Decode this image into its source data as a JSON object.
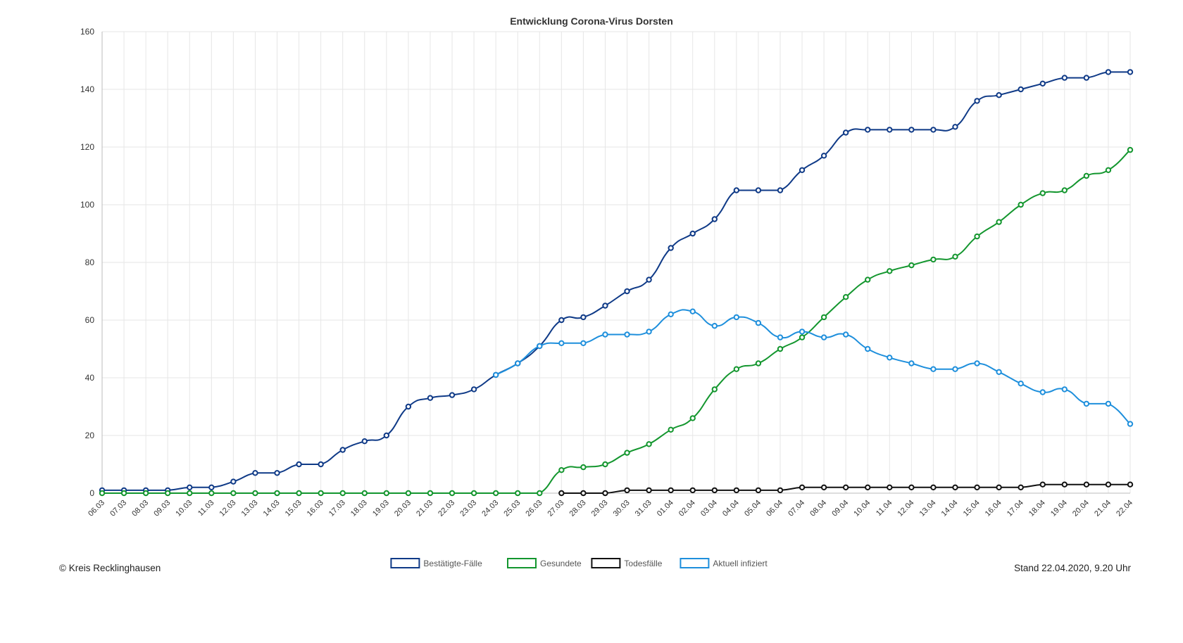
{
  "chart_data": {
    "type": "line",
    "title": "Entwicklung Corona-Virus Dorsten",
    "xlabel": "",
    "ylabel": "",
    "ylim": [
      0,
      160
    ],
    "yticks": [
      0,
      20,
      40,
      60,
      80,
      100,
      120,
      140,
      160
    ],
    "grid": true,
    "legend_position": "bottom-center",
    "categories": [
      "06.03",
      "07.03",
      "08.03",
      "09.03",
      "10.03",
      "11.03",
      "12.03",
      "13.03",
      "14.03",
      "15.03",
      "16.03",
      "17.03",
      "18.03",
      "19.03",
      "20.03",
      "21.03",
      "22.03",
      "23.03",
      "24.03",
      "25.03",
      "26.03",
      "27.03",
      "28.03",
      "29.03",
      "30.03",
      "31.03",
      "01.04",
      "02.04",
      "03.04",
      "04.04",
      "05.04",
      "06.04",
      "07.04",
      "08.04",
      "09.04",
      "10.04",
      "11.04",
      "12.04",
      "13.04",
      "14.04",
      "15.04",
      "16.04",
      "17.04",
      "18.04",
      "19.04",
      "20.04",
      "21.04",
      "22.04"
    ],
    "series": [
      {
        "name": "Bestätigte-Fälle",
        "color": "#0f3a87",
        "values": [
          1,
          1,
          1,
          1,
          2,
          2,
          4,
          7,
          7,
          10,
          10,
          15,
          18,
          20,
          30,
          33,
          34,
          36,
          41,
          45,
          51,
          60,
          61,
          65,
          70,
          74,
          85,
          90,
          95,
          105,
          105,
          105,
          112,
          117,
          125,
          126,
          126,
          126,
          126,
          127,
          136,
          138,
          140,
          142,
          144,
          144,
          146,
          146
        ]
      },
      {
        "name": "Gesundete",
        "color": "#13962e",
        "values": [
          0,
          0,
          0,
          0,
          0,
          0,
          0,
          0,
          0,
          0,
          0,
          0,
          0,
          0,
          0,
          0,
          0,
          0,
          0,
          0,
          0,
          8,
          9,
          10,
          14,
          17,
          22,
          26,
          36,
          43,
          45,
          50,
          54,
          61,
          68,
          74,
          77,
          79,
          81,
          82,
          89,
          94,
          100,
          104,
          105,
          110,
          112,
          119
        ]
      },
      {
        "name": "Todesfälle",
        "color": "#111111",
        "values": [
          null,
          null,
          null,
          null,
          null,
          null,
          null,
          null,
          null,
          null,
          null,
          null,
          null,
          null,
          null,
          null,
          null,
          null,
          null,
          null,
          null,
          0,
          0,
          0,
          1,
          1,
          1,
          1,
          1,
          1,
          1,
          1,
          2,
          2,
          2,
          2,
          2,
          2,
          2,
          2,
          2,
          2,
          2,
          3,
          3,
          3,
          3,
          3
        ]
      },
      {
        "name": "Aktuell infiziert",
        "color": "#1e8fdc",
        "values": [
          null,
          null,
          null,
          null,
          null,
          null,
          null,
          null,
          null,
          null,
          null,
          null,
          null,
          null,
          null,
          null,
          null,
          null,
          41,
          45,
          51,
          52,
          52,
          55,
          55,
          56,
          62,
          63,
          58,
          61,
          59,
          54,
          56,
          54,
          55,
          50,
          47,
          45,
          43,
          43,
          45,
          42,
          38,
          35,
          36,
          31,
          31,
          24
        ]
      }
    ]
  },
  "footer": {
    "copyright": "© Kreis Recklinghausen",
    "timestamp": "Stand 22.04.2020, 9.20 Uhr"
  }
}
